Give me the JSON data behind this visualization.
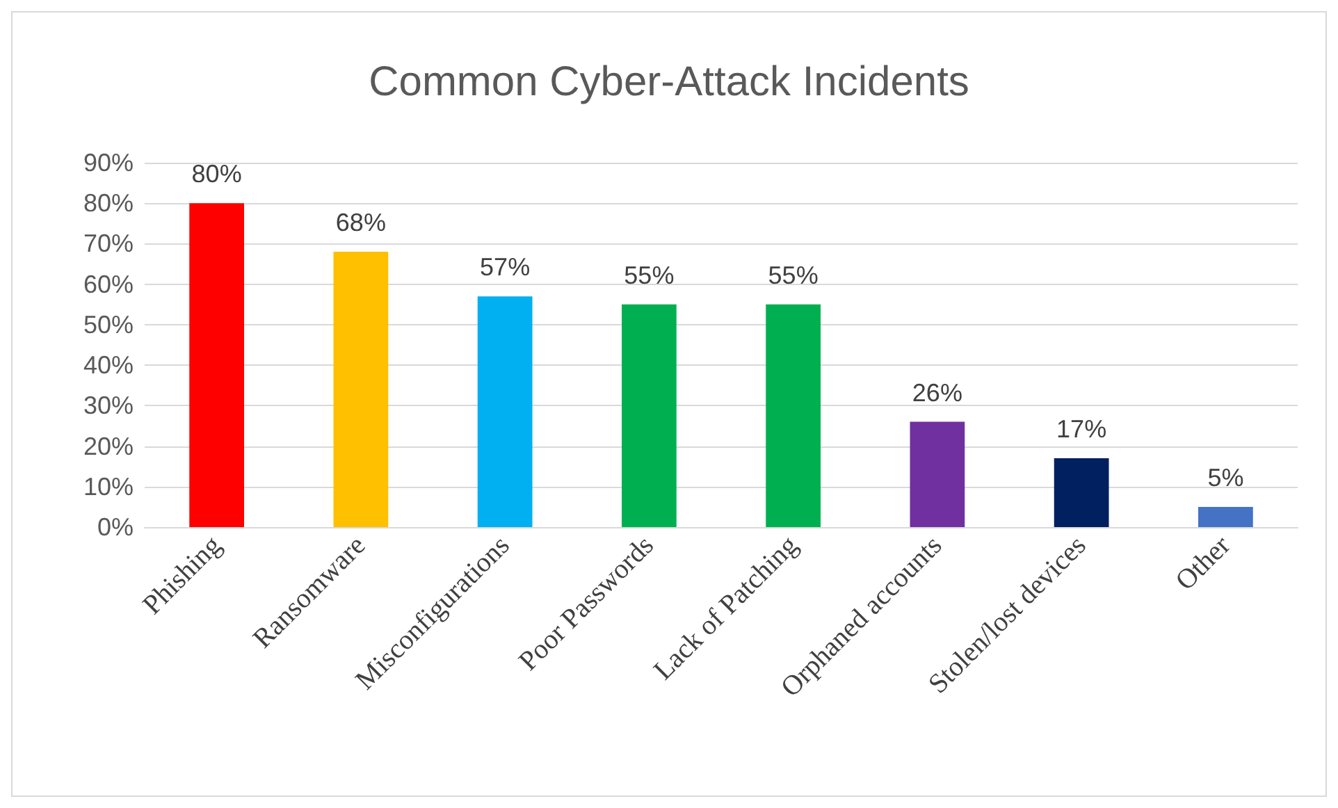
{
  "chart_data": {
    "type": "bar",
    "title": "Common Cyber-Attack Incidents",
    "categories": [
      "Phishing",
      "Ransomware",
      "Misconfigurations",
      "Poor Passwords",
      "Lack of Patching",
      "Orphaned accounts",
      "Stolen/lost devices",
      "Other"
    ],
    "values": [
      80,
      68,
      57,
      55,
      55,
      26,
      17,
      5
    ],
    "colors": [
      "#ff0000",
      "#ffc000",
      "#00b0f0",
      "#00b050",
      "#00b050",
      "#7030a0",
      "#002060",
      "#4472c4"
    ],
    "value_labels": [
      "80%",
      "68%",
      "57%",
      "55%",
      "55%",
      "26%",
      "17%",
      "5%"
    ],
    "ylim": [
      0,
      90
    ],
    "yticks": [
      {
        "value": 0,
        "label": "0%"
      },
      {
        "value": 10,
        "label": "10%"
      },
      {
        "value": 20,
        "label": "20%"
      },
      {
        "value": 30,
        "label": "30%"
      },
      {
        "value": 40,
        "label": "40%"
      },
      {
        "value": 50,
        "label": "50%"
      },
      {
        "value": 60,
        "label": "60%"
      },
      {
        "value": 70,
        "label": "70%"
      },
      {
        "value": 80,
        "label": "80%"
      },
      {
        "value": 90,
        "label": "90%"
      }
    ],
    "grid": "y"
  }
}
